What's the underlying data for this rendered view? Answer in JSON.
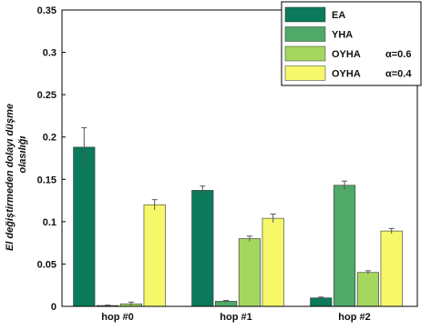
{
  "chart_data": {
    "type": "bar",
    "categories": [
      "hop #0",
      "hop #1",
      "hop #2"
    ],
    "series": [
      {
        "name": "EA",
        "alpha": "",
        "color": "#0b7a5b",
        "values": [
          0.188,
          0.137,
          0.01
        ],
        "errors": [
          0.023,
          0.005,
          0.001
        ]
      },
      {
        "name": "YHA",
        "alpha": "",
        "color": "#4fa968",
        "values": [
          0.001,
          0.006,
          0.143
        ],
        "errors": [
          0.0005,
          0.001,
          0.005
        ]
      },
      {
        "name": "OYHA",
        "alpha": "α=0.6",
        "color": "#a5d75f",
        "values": [
          0.003,
          0.08,
          0.04
        ],
        "errors": [
          0.002,
          0.003,
          0.002
        ]
      },
      {
        "name": "OYHA",
        "alpha": "α=0.4",
        "color": "#f6f86a",
        "values": [
          0.12,
          0.104,
          0.089
        ],
        "errors": [
          0.006,
          0.005,
          0.003
        ]
      }
    ],
    "ylabel_line1": "El değiştirmeden dolayı düşme",
    "ylabel_line2": "olasılığı",
    "ylim": [
      0,
      0.35
    ],
    "yticks": [
      0,
      0.05,
      0.1,
      0.15,
      0.2,
      0.25,
      0.3,
      0.35
    ],
    "ytick_labels": [
      "0",
      "0.05",
      "0.1",
      "0.15",
      "0.2",
      "0.25",
      "0.3",
      "0.35"
    ],
    "legend_position": "top-right",
    "grid": false
  }
}
